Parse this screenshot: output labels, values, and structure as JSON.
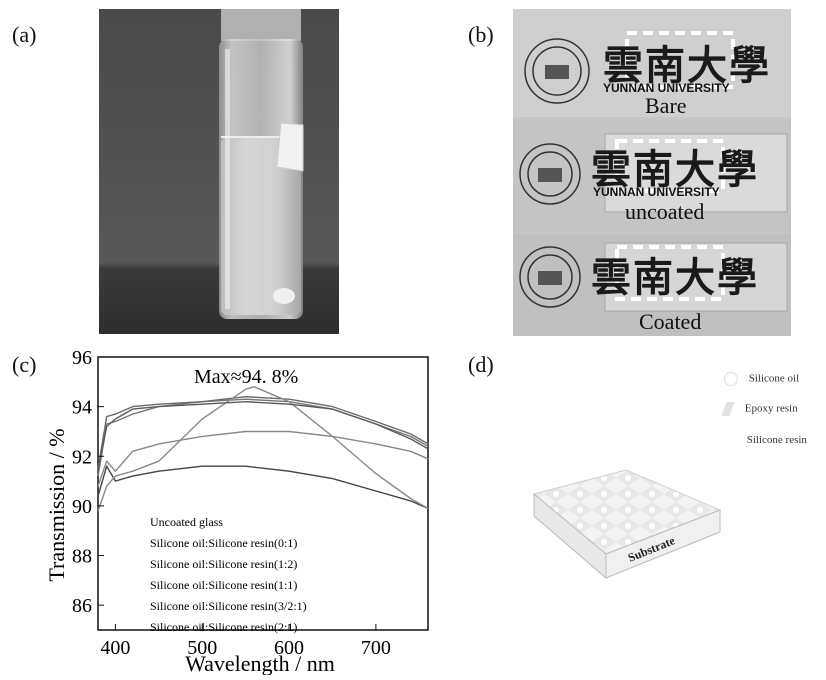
{
  "panels": {
    "a": {
      "label": "(a)"
    },
    "b": {
      "label": "(b)",
      "logo_text_top": "Ā 南 大 學",
      "logo_text_bottom": "YUNNAN UNIVERSITY",
      "chinese_title": "雲南大學",
      "english_title": "YUNNAN UNIVERSITY",
      "captions": [
        "Bare",
        "uncoated",
        "Coated"
      ]
    },
    "c": {
      "label": "(c)",
      "annotation": "Max≈94. 8%",
      "xlabel": "Wavelength / nm",
      "ylabel": "Transmission / %",
      "legend": [
        "Uncoated glass",
        "Silicone oil:Silicone resin(0:1)",
        "Silicone oil:Silicone resin(1:2)",
        "Silicone oil:Silicone resin(1:1)",
        "Silicone oil:Silicone resin(3/2:1)",
        "Silicone oil:Silicone resin(2:1)"
      ]
    },
    "d": {
      "label": "(d)",
      "legend": [
        "Silicone oil",
        "Epoxy resin",
        "Silicone resin"
      ],
      "substrate_label": "Substrate"
    }
  },
  "chart_data": {
    "type": "line",
    "xlabel": "Wavelength / nm",
    "ylabel": "Transmission / %",
    "xlim": [
      380,
      760
    ],
    "ylim": [
      85,
      96
    ],
    "xticks": [
      400,
      500,
      600,
      700
    ],
    "yticks": [
      86,
      88,
      90,
      92,
      94,
      96
    ],
    "annotation": "Max≈94. 8%",
    "series": [
      {
        "name": "Uncoated glass",
        "x": [
          380,
          390,
          400,
          420,
          450,
          500,
          550,
          600,
          650,
          700,
          740,
          760
        ],
        "y": [
          90.4,
          91.6,
          91.0,
          91.2,
          91.4,
          91.6,
          91.6,
          91.4,
          91.1,
          90.6,
          90.2,
          89.9
        ]
      },
      {
        "name": "Silicone oil:Silicone resin(0:1)",
        "x": [
          380,
          390,
          400,
          420,
          450,
          500,
          550,
          600,
          650,
          700,
          740,
          760
        ],
        "y": [
          91.2,
          93.3,
          93.4,
          93.7,
          94.0,
          94.2,
          94.3,
          94.2,
          93.9,
          93.3,
          92.8,
          92.4
        ]
      },
      {
        "name": "Silicone oil:Silicone resin(1:2)",
        "x": [
          380,
          390,
          400,
          420,
          450,
          500,
          550,
          600,
          650,
          700,
          740,
          760
        ],
        "y": [
          91.5,
          93.6,
          93.7,
          94.0,
          94.1,
          94.2,
          94.4,
          94.3,
          94.0,
          93.4,
          92.9,
          92.5
        ]
      },
      {
        "name": "Silicone oil:Silicone resin(1:1)",
        "x": [
          380,
          390,
          400,
          420,
          450,
          500,
          550,
          600,
          650,
          700,
          740,
          760
        ],
        "y": [
          90.8,
          91.8,
          91.4,
          92.2,
          92.5,
          92.8,
          93.0,
          93.0,
          92.8,
          92.5,
          92.2,
          91.9
        ]
      },
      {
        "name": "Silicone oil:Silicone resin(3/2:1)",
        "x": [
          380,
          390,
          400,
          420,
          450,
          500,
          550,
          560,
          600,
          650,
          700,
          740,
          760
        ],
        "y": [
          89.8,
          90.8,
          91.2,
          91.4,
          91.8,
          93.5,
          94.7,
          94.8,
          94.2,
          92.8,
          91.3,
          90.3,
          89.9
        ]
      },
      {
        "name": "Silicone oil:Silicone resin(2:1)",
        "x": [
          380,
          390,
          400,
          420,
          450,
          500,
          550,
          600,
          650,
          700,
          740,
          760
        ],
        "y": [
          91.4,
          93.2,
          93.5,
          93.9,
          94.0,
          94.1,
          94.2,
          94.1,
          93.9,
          93.3,
          92.7,
          92.3
        ]
      }
    ]
  }
}
